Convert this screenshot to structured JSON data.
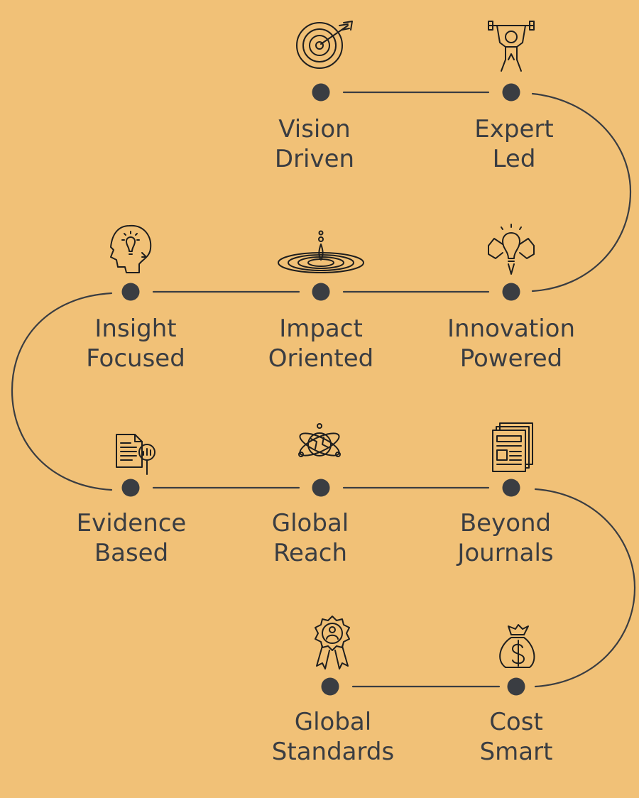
{
  "colors": {
    "background": "#F1C177",
    "ink": "#3a3d42",
    "icon": "#1e1e1e"
  },
  "milestones": [
    {
      "id": "vision",
      "icon": "target-arrow-icon",
      "line1": "Vision",
      "line2": "Driven"
    },
    {
      "id": "expert",
      "icon": "weightlifter-icon",
      "line1": "Expert",
      "line2": "Led"
    },
    {
      "id": "insight",
      "icon": "head-lightbulb-icon",
      "line1": "Insight",
      "line2": "Focused"
    },
    {
      "id": "impact",
      "icon": "water-ripple-icon",
      "line1": "Impact",
      "line2": "Oriented"
    },
    {
      "id": "innovation",
      "icon": "strong-lightbulb-icon",
      "line1": "Innovation",
      "line2": "Powered"
    },
    {
      "id": "evidence",
      "icon": "document-magnifier-icon",
      "line1": "Evidence",
      "line2": "Based"
    },
    {
      "id": "global",
      "icon": "atom-globe-icon",
      "line1": "Global",
      "line2": "Reach"
    },
    {
      "id": "beyond",
      "icon": "newspaper-stack-icon",
      "line1": "Beyond",
      "line2": "Journals"
    },
    {
      "id": "standards",
      "icon": "award-badge-icon",
      "line1": "Global",
      "line2": "Standards"
    },
    {
      "id": "cost",
      "icon": "money-bag-icon",
      "line1": "Cost",
      "line2": "Smart"
    }
  ]
}
